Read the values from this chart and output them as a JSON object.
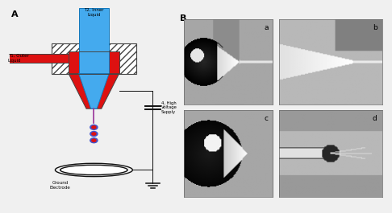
{
  "panel_A_label": "A",
  "panel_B_label": "B",
  "bg_color": "#f0f0f0",
  "schematic": {
    "hatching_color": "#444444",
    "nozzle_outer_color": "#dd1111",
    "nozzle_inner_color": "#44aaee",
    "jet_color": "#993399",
    "electrode_color": "#111111",
    "wire_color": "#111111",
    "label_T2": "T2, Inner\nLiquid",
    "label_T1": "T1, Outer\nLiquid",
    "label_HV": "4, High\nVoltage\nSupply",
    "label_GE": "Ground\nElectrode"
  },
  "photo_labels": [
    "a",
    "b",
    "c",
    "d"
  ],
  "photo_bg": "#aaaaaa",
  "photo_border_color": "#666666"
}
